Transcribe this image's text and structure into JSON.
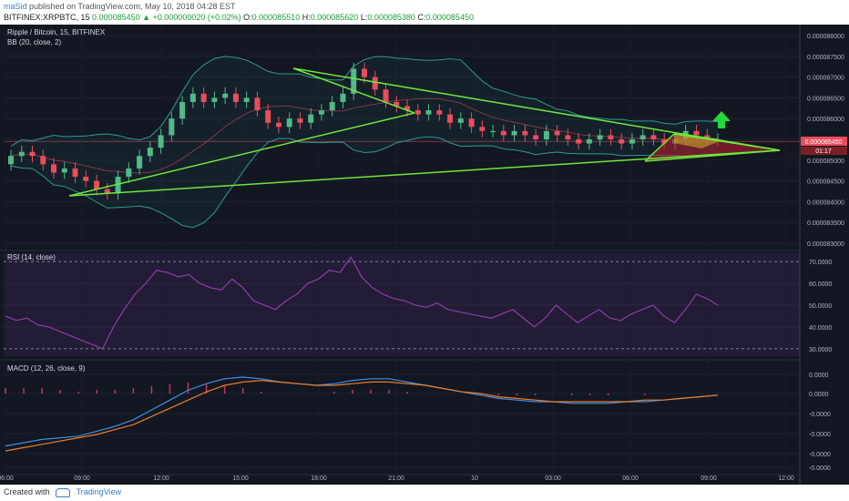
{
  "header": {
    "user": "maSid",
    "published": "published on TradingView.com, May 10, 2018 04:28 EST",
    "symbol_line": "BITFINEX:XRPBTC, 15",
    "last": "0.000085450",
    "change": "▲ +0.000000020 (+0.02%)",
    "o_label": "O:",
    "o_value": "0.000085510",
    "h_label": "H:",
    "h_value": "0.000085620",
    "l_label": "L:",
    "l_value": "0.000085380",
    "c_label": "C:",
    "c_value": "0.000085450"
  },
  "footer": {
    "created_with": "Created with",
    "brand": "TradingView"
  },
  "colors": {
    "background": "#131722",
    "up": "#53b987",
    "down": "#eb4d5c",
    "trendline": "#6ee83a",
    "arrow": "#22d83a",
    "bb": "#2c9b8f",
    "rsi": "#9c44b8",
    "macd": "#3d8ee6",
    "signal": "#f07c25"
  },
  "chart_data": [
    {
      "type": "candlestick",
      "title": "Ripple / Bitcoin, 15, BITFINEX",
      "indicator_label": "BB (20, close, 2)",
      "y_ticks": [
        "0.000088000",
        "0.000087500",
        "0.000087000",
        "0.000086500",
        "0.000086000",
        "0.000085500",
        "0.000085000",
        "0.000084500",
        "0.000084000",
        "0.000083500",
        "0.000083000"
      ],
      "price_tag": "0.000085450",
      "countdown": "01:17",
      "ylim": [
        8.29e-05,
        8.83e-05
      ],
      "x_ticks": [
        "06:00",
        "09:00",
        "12:00",
        "15:00",
        "18:00",
        "21:00",
        "10",
        "03:00",
        "06:00",
        "09:00",
        "12:00"
      ],
      "close_approx": [
        8.51e-05,
        8.52e-05,
        8.51e-05,
        8.49e-05,
        8.47e-05,
        8.48e-05,
        8.46e-05,
        8.45e-05,
        8.43e-05,
        8.42e-05,
        8.46e-05,
        8.48e-05,
        8.51e-05,
        8.53e-05,
        8.56e-05,
        8.6e-05,
        8.64e-05,
        8.66e-05,
        8.64e-05,
        8.65e-05,
        8.66e-05,
        8.64e-05,
        8.65e-05,
        8.62e-05,
        8.59e-05,
        8.58e-05,
        8.6e-05,
        8.59e-05,
        8.61e-05,
        8.62e-05,
        8.64e-05,
        8.66e-05,
        8.72e-05,
        8.7e-05,
        8.67e-05,
        8.64e-05,
        8.63e-05,
        8.62e-05,
        8.61e-05,
        8.62e-05,
        8.61e-05,
        8.59e-05,
        8.6e-05,
        8.58e-05,
        8.57e-05,
        8.57e-05,
        8.56e-05,
        8.57e-05,
        8.56e-05,
        8.55e-05,
        8.57e-05,
        8.56e-05,
        8.55e-05,
        8.54e-05,
        8.55e-05,
        8.56e-05,
        8.55e-05,
        8.54e-05,
        8.55e-05,
        8.56e-05,
        8.55e-05,
        8.54e-05,
        8.55e-05,
        8.57e-05,
        8.56e-05,
        8.55e-05,
        8.55e-05
      ]
    },
    {
      "type": "line",
      "title": "RSI (14, close)",
      "y_ticks": [
        "70.0000",
        "60.0000",
        "50.0000",
        "40.0000",
        "30.0000"
      ],
      "ylim": [
        27,
        73
      ],
      "values": [
        45,
        43,
        44,
        41,
        40,
        38,
        36,
        34,
        32,
        30,
        40,
        48,
        55,
        60,
        66,
        65,
        63,
        64,
        60,
        58,
        57,
        62,
        58,
        52,
        50,
        48,
        52,
        55,
        60,
        62,
        66,
        65,
        72,
        63,
        58,
        55,
        53,
        52,
        50,
        49,
        51,
        48,
        47,
        46,
        45,
        44,
        46,
        48,
        44,
        40,
        44,
        50,
        46,
        42,
        45,
        48,
        44,
        43,
        46,
        48,
        50,
        45,
        42,
        48,
        55,
        53,
        50
      ]
    },
    {
      "type": "line",
      "title": "MACD (12, 26, close, 9)",
      "y_ticks": [
        "0.0000",
        "0.0000",
        "-0.0000",
        "-0.0000",
        "-0.0000",
        "-0.0000"
      ],
      "series": [
        {
          "name": "",
          "values": [
            -3.2,
            -3.0,
            -2.8,
            -2.7,
            -2.6,
            -2.3,
            -2.0,
            -1.6,
            -1.0,
            -0.4,
            0.2,
            0.6,
            0.9,
            1.0,
            0.9,
            0.7,
            0.6,
            0.5,
            0.6,
            0.8,
            0.9,
            0.9,
            0.7,
            0.5,
            0.3,
            0.1,
            -0.1,
            -0.3,
            -0.4,
            -0.5,
            -0.5,
            -0.6,
            -0.6,
            -0.6,
            -0.5,
            -0.5,
            -0.4,
            -0.3,
            -0.2,
            -0.1
          ]
        },
        {
          "name": "",
          "values": [
            -3.5,
            -3.3,
            -3.1,
            -2.9,
            -2.7,
            -2.5,
            -2.2,
            -1.9,
            -1.4,
            -0.9,
            -0.4,
            0.1,
            0.5,
            0.7,
            0.8,
            0.7,
            0.6,
            0.5,
            0.5,
            0.6,
            0.7,
            0.7,
            0.6,
            0.5,
            0.3,
            0.1,
            0.0,
            -0.2,
            -0.3,
            -0.4,
            -0.5,
            -0.5,
            -0.5,
            -0.5,
            -0.5,
            -0.4,
            -0.4,
            -0.3,
            -0.2,
            -0.1
          ]
        }
      ]
    }
  ]
}
